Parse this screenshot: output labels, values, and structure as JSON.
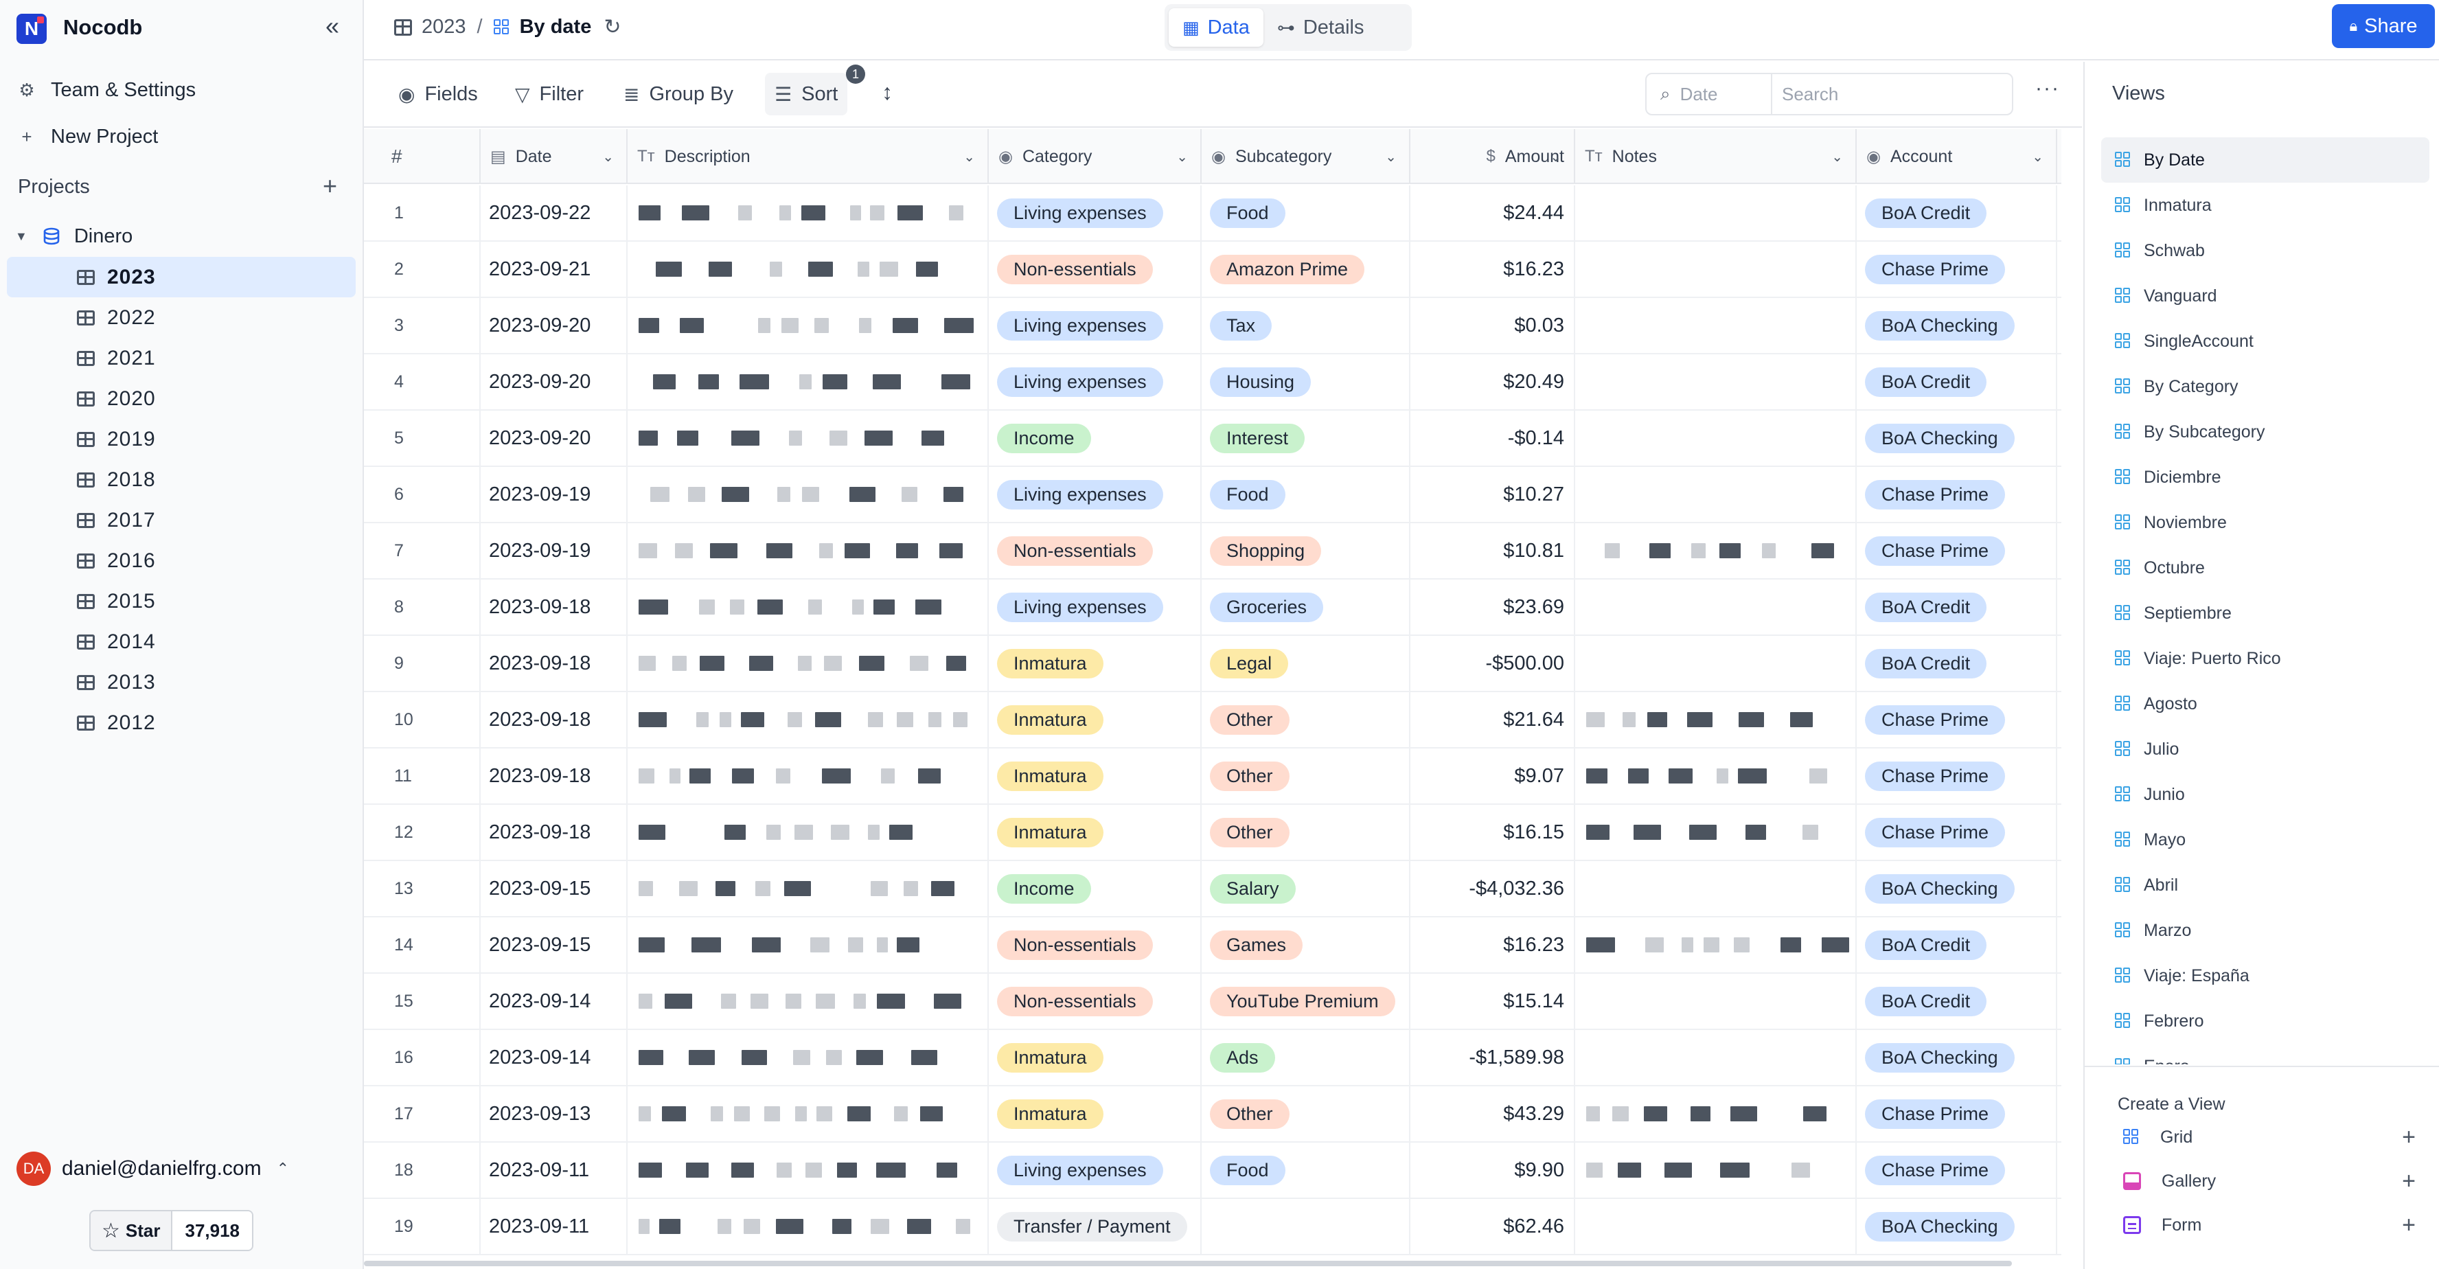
{
  "app": {
    "name": "Nocodb",
    "logo_letter": "N"
  },
  "sidebar": {
    "links": [
      {
        "icon": "gear-icon",
        "label": "Team & Settings"
      },
      {
        "icon": "plus-icon",
        "label": "New Project"
      }
    ],
    "projects_label": "Projects",
    "project": {
      "name": "Dinero"
    },
    "tables": [
      "2023",
      "2022",
      "2021",
      "2020",
      "2019",
      "2018",
      "2017",
      "2016",
      "2015",
      "2014",
      "2013",
      "2012"
    ],
    "active_table": "2023",
    "user": {
      "initials": "DA",
      "email": "daniel@danielfrg.com"
    },
    "star": {
      "label": "Star",
      "count": "37,918"
    }
  },
  "topbar": {
    "breadcrumb": {
      "table": "2023",
      "separator": "/",
      "view": "By date"
    },
    "modes": [
      {
        "label": "Data",
        "active": true
      },
      {
        "label": "Details",
        "active": false
      }
    ],
    "share_label": "Share"
  },
  "toolbar": {
    "fields_label": "Fields",
    "filter_label": "Filter",
    "group_label": "Group By",
    "sort_label": "Sort",
    "sort_count": "1",
    "search_field": "Date",
    "search_placeholder": "Search"
  },
  "grid": {
    "columns": [
      {
        "key": "num",
        "label": "#"
      },
      {
        "key": "date",
        "label": "Date",
        "icon": "calendar-icon"
      },
      {
        "key": "desc",
        "label": "Description",
        "icon": "text-icon"
      },
      {
        "key": "cat",
        "label": "Category",
        "icon": "single-select-icon"
      },
      {
        "key": "sub",
        "label": "Subcategory",
        "icon": "single-select-icon"
      },
      {
        "key": "amt",
        "label": "Amount",
        "icon": "currency-icon"
      },
      {
        "key": "notes",
        "label": "Notes",
        "icon": "text-icon"
      },
      {
        "key": "acct",
        "label": "Account",
        "icon": "single-select-icon"
      }
    ],
    "colors": {
      "Living expenses": "#cfe2ff",
      "Non-essentials": "#ffdccf",
      "Income": "#c9f2cd",
      "Inmatura": "#fdeaa7",
      "Transfer / Payment": "#eceef1",
      "BoA Credit": "#cfe2ff",
      "Chase Prime": "#cfe2ff",
      "BoA Checking": "#cfe2ff",
      "sub_default": "#cfe2ff"
    },
    "rows": [
      {
        "num": "1",
        "date": "2023-09-22",
        "cat": "Living expenses",
        "sub": "Food",
        "sub_color": "#cfe2ff",
        "amt": "$24.44",
        "notes": false,
        "acct": "BoA Credit"
      },
      {
        "num": "2",
        "date": "2023-09-21",
        "cat": "Non-essentials",
        "sub": "Amazon Prime",
        "sub_color": "#ffdccf",
        "amt": "$16.23",
        "notes": false,
        "acct": "Chase Prime"
      },
      {
        "num": "3",
        "date": "2023-09-20",
        "cat": "Living expenses",
        "sub": "Tax",
        "sub_color": "#cfe2ff",
        "amt": "$0.03",
        "notes": false,
        "acct": "BoA Checking"
      },
      {
        "num": "4",
        "date": "2023-09-20",
        "cat": "Living expenses",
        "sub": "Housing",
        "sub_color": "#cfe2ff",
        "amt": "$20.49",
        "notes": false,
        "acct": "BoA Credit"
      },
      {
        "num": "5",
        "date": "2023-09-20",
        "cat": "Income",
        "sub": "Interest",
        "sub_color": "#c9f2cd",
        "amt": "-$0.14",
        "notes": false,
        "acct": "BoA Checking"
      },
      {
        "num": "6",
        "date": "2023-09-19",
        "cat": "Living expenses",
        "sub": "Food",
        "sub_color": "#cfe2ff",
        "amt": "$10.27",
        "notes": false,
        "acct": "Chase Prime"
      },
      {
        "num": "7",
        "date": "2023-09-19",
        "cat": "Non-essentials",
        "sub": "Shopping",
        "sub_color": "#ffdccf",
        "amt": "$10.81",
        "notes": true,
        "acct": "Chase Prime"
      },
      {
        "num": "8",
        "date": "2023-09-18",
        "cat": "Living expenses",
        "sub": "Groceries",
        "sub_color": "#cfe2ff",
        "amt": "$23.69",
        "notes": false,
        "acct": "BoA Credit"
      },
      {
        "num": "9",
        "date": "2023-09-18",
        "cat": "Inmatura",
        "sub": "Legal",
        "sub_color": "#fdeaa7",
        "amt": "-$500.00",
        "notes": false,
        "acct": "BoA Credit"
      },
      {
        "num": "10",
        "date": "2023-09-18",
        "cat": "Inmatura",
        "sub": "Other",
        "sub_color": "#ffdccf",
        "amt": "$21.64",
        "notes": true,
        "acct": "Chase Prime"
      },
      {
        "num": "11",
        "date": "2023-09-18",
        "cat": "Inmatura",
        "sub": "Other",
        "sub_color": "#ffdccf",
        "amt": "$9.07",
        "notes": true,
        "acct": "Chase Prime"
      },
      {
        "num": "12",
        "date": "2023-09-18",
        "cat": "Inmatura",
        "sub": "Other",
        "sub_color": "#ffdccf",
        "amt": "$16.15",
        "notes": true,
        "acct": "Chase Prime"
      },
      {
        "num": "13",
        "date": "2023-09-15",
        "cat": "Income",
        "sub": "Salary",
        "sub_color": "#c9f2cd",
        "amt": "-$4,032.36",
        "notes": false,
        "acct": "BoA Checking"
      },
      {
        "num": "14",
        "date": "2023-09-15",
        "cat": "Non-essentials",
        "sub": "Games",
        "sub_color": "#ffdccf",
        "amt": "$16.23",
        "notes": true,
        "acct": "BoA Credit"
      },
      {
        "num": "15",
        "date": "2023-09-14",
        "cat": "Non-essentials",
        "sub": "YouTube Premium",
        "sub_color": "#ffdccf",
        "amt": "$15.14",
        "notes": false,
        "acct": "BoA Credit"
      },
      {
        "num": "16",
        "date": "2023-09-14",
        "cat": "Inmatura",
        "sub": "Ads",
        "sub_color": "#c9f2cd",
        "amt": "-$1,589.98",
        "notes": false,
        "acct": "BoA Checking"
      },
      {
        "num": "17",
        "date": "2023-09-13",
        "cat": "Inmatura",
        "sub": "Other",
        "sub_color": "#ffdccf",
        "amt": "$43.29",
        "notes": true,
        "acct": "Chase Prime"
      },
      {
        "num": "18",
        "date": "2023-09-11",
        "cat": "Living expenses",
        "sub": "Food",
        "sub_color": "#cfe2ff",
        "amt": "$9.90",
        "notes": true,
        "acct": "Chase Prime"
      },
      {
        "num": "19",
        "date": "2023-09-11",
        "cat": "Transfer / Payment",
        "sub": "",
        "sub_color": "#ffffff",
        "amt": "$62.46",
        "notes": false,
        "acct": "BoA Checking"
      }
    ]
  },
  "views_panel": {
    "title": "Views",
    "views": [
      "By Date",
      "Inmatura",
      "Schwab",
      "Vanguard",
      "SingleAccount",
      "By Category",
      "By Subcategory",
      "Diciembre",
      "Noviembre",
      "Octubre",
      "Septiembre",
      "Viaje: Puerto Rico",
      "Agosto",
      "Julio",
      "Junio",
      "Mayo",
      "Abril",
      "Marzo",
      "Viaje: España",
      "Febrero",
      "Enero"
    ],
    "active_view": "By Date",
    "create_label": "Create a View",
    "create_options": [
      {
        "label": "Grid",
        "color": "#3b82f6"
      },
      {
        "label": "Gallery",
        "color": "#d946b7"
      },
      {
        "label": "Form",
        "color": "#7c3aed"
      }
    ]
  }
}
